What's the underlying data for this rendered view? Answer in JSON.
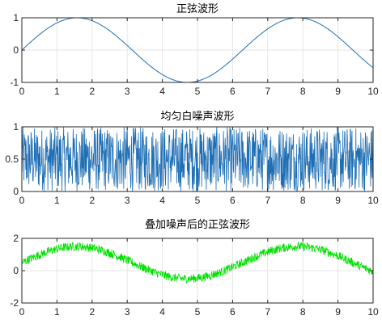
{
  "chart_data": [
    {
      "type": "line",
      "title": "正弦波形",
      "xlabel": "",
      "ylabel": "",
      "xlim": [
        0,
        10
      ],
      "ylim": [
        -1,
        1
      ],
      "xticks": [
        0,
        1,
        2,
        3,
        4,
        5,
        6,
        7,
        8,
        9,
        10
      ],
      "yticks": [
        -1,
        0,
        1
      ],
      "ytick_labels": [
        "-1",
        "0",
        "1"
      ],
      "grid": true,
      "series": [
        {
          "color": "#1f6fb5",
          "function": "y = sin(x)",
          "x": [
            0,
            0.5,
            1,
            1.5708,
            2,
            2.5,
            3,
            3.5,
            4,
            4.7124,
            5,
            5.5,
            6,
            6.5,
            7,
            7.854,
            8,
            8.5,
            9,
            9.5,
            10
          ],
          "y": [
            0,
            0.479,
            0.841,
            1,
            0.909,
            0.598,
            0.141,
            -0.351,
            -0.757,
            -1,
            -0.959,
            -0.706,
            -0.279,
            0.215,
            0.657,
            1,
            0.989,
            0.798,
            0.412,
            -0.075,
            -0.544
          ]
        }
      ]
    },
    {
      "type": "line",
      "title": "均匀白噪声波形",
      "xlabel": "",
      "ylabel": "",
      "xlim": [
        0,
        10
      ],
      "ylim": [
        0,
        1
      ],
      "xticks": [
        0,
        1,
        2,
        3,
        4,
        5,
        6,
        7,
        8,
        9,
        10
      ],
      "yticks": [
        0,
        0.5,
        1
      ],
      "ytick_labels": [
        "0",
        "0.5",
        "1"
      ],
      "grid": true,
      "series": [
        {
          "color": "#1f6fb5",
          "function": "uniform random on [0,1], step 0.01",
          "x_start": 0,
          "x_end": 10,
          "x_step": 0.01,
          "y_range": [
            0,
            1
          ]
        }
      ]
    },
    {
      "type": "line",
      "title": "叠加噪声后的正弦波形",
      "xlabel": "",
      "ylabel": "",
      "xlim": [
        0,
        10
      ],
      "ylim": [
        -2,
        2
      ],
      "xticks": [
        0,
        1,
        2,
        3,
        4,
        5,
        6,
        7,
        8,
        9,
        10
      ],
      "yticks": [
        -2,
        0,
        2
      ],
      "ytick_labels": [
        "-2",
        "0",
        "2"
      ],
      "grid": true,
      "series": [
        {
          "color": "#00e000",
          "function": "sin(x) + uniform noise on [0,1], step 0.01",
          "x_start": 0,
          "x_end": 10,
          "x_step": 0.01
        }
      ]
    }
  ]
}
